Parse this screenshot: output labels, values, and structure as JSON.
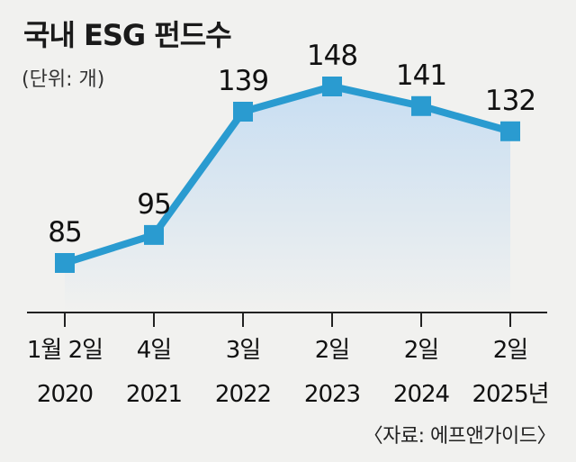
{
  "chart_data": {
    "type": "line",
    "title": "국내 ESG 펀드수",
    "unit_note": "(단위: 개)",
    "source": "〈자료: 에프앤가이드〉",
    "categories": [
      {
        "line1": "1월 2일",
        "line2": "2020"
      },
      {
        "line1": "4일",
        "line2": "2021"
      },
      {
        "line1": "3일",
        "line2": "2022"
      },
      {
        "line1": "2일",
        "line2": "2023"
      },
      {
        "line1": "2일",
        "line2": "2024"
      },
      {
        "line1": "2일",
        "line2": "2025년"
      }
    ],
    "values": [
      85,
      95,
      139,
      148,
      141,
      132
    ],
    "data_labels": [
      "85",
      "95",
      "139",
      "148",
      "141",
      "132"
    ],
    "ylim": [
      72,
      154
    ],
    "grid": false,
    "colors": {
      "line": "#2a9bd0",
      "marker": "#2a9bd0",
      "area_top": "#c8def2",
      "area_bottom": "#f1f1ef",
      "background": "#f1f1ef"
    }
  }
}
